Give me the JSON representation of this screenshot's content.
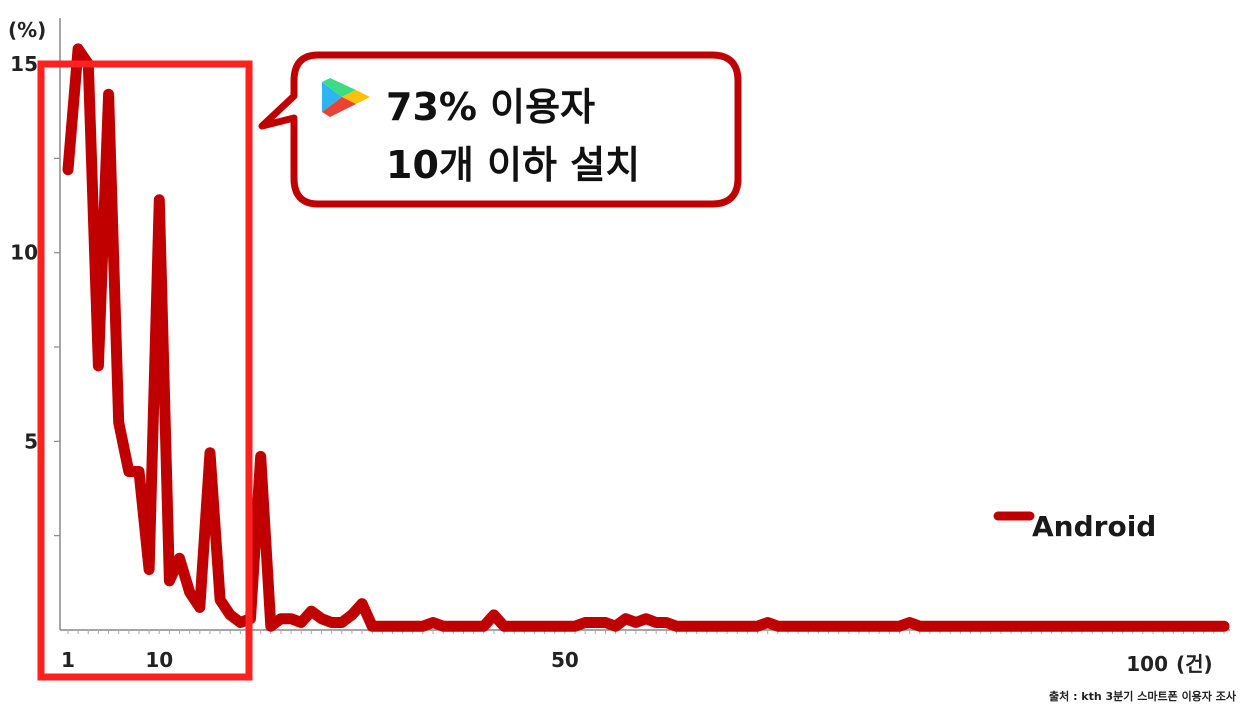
{
  "chart_data": {
    "type": "line",
    "y_unit_label": "(%)",
    "x_unit_label": "(건)",
    "ylim": [
      0,
      15
    ],
    "yticks": [
      5,
      10,
      15
    ],
    "xticks": [
      1,
      10,
      50,
      100
    ],
    "grid": false,
    "legend_position": "right",
    "series": [
      {
        "name": "Android",
        "color": "#c00000",
        "x": [
          1,
          2,
          3,
          4,
          5,
          6,
          7,
          8,
          9,
          10,
          11,
          12,
          13,
          14,
          15,
          16,
          17,
          18,
          19,
          20,
          21,
          22,
          23,
          24,
          25,
          26,
          27,
          28,
          29,
          30,
          31,
          32,
          33,
          34,
          35,
          36,
          37,
          38,
          39,
          40,
          41,
          42,
          43,
          44,
          45,
          46,
          47,
          48,
          49,
          50,
          51,
          52,
          53,
          54,
          55,
          56,
          57,
          58,
          59,
          60,
          61,
          62,
          63,
          64,
          65,
          66,
          67,
          68,
          69,
          70,
          71,
          72,
          73,
          74,
          75,
          76,
          77,
          78,
          79,
          80,
          81,
          82,
          83,
          84,
          85,
          86,
          87,
          88,
          89,
          90,
          91,
          92,
          93,
          94,
          95,
          96,
          97,
          98,
          99,
          100,
          101,
          102,
          103,
          104,
          105,
          106,
          107,
          108,
          109,
          110,
          111,
          112,
          113,
          114,
          115
        ],
        "values": [
          12.2,
          15.4,
          15.0,
          7.0,
          14.2,
          5.5,
          4.2,
          4.2,
          1.6,
          11.4,
          1.3,
          1.9,
          1.0,
          0.6,
          4.7,
          0.8,
          0.4,
          0.2,
          0.3,
          4.6,
          0.1,
          0.3,
          0.3,
          0.2,
          0.5,
          0.3,
          0.2,
          0.2,
          0.4,
          0.7,
          0.1,
          0.1,
          0.1,
          0.1,
          0.1,
          0.1,
          0.2,
          0.1,
          0.1,
          0.1,
          0.1,
          0.1,
          0.4,
          0.1,
          0.1,
          0.1,
          0.1,
          0.1,
          0.1,
          0.1,
          0.1,
          0.2,
          0.2,
          0.2,
          0.1,
          0.3,
          0.2,
          0.3,
          0.2,
          0.2,
          0.1,
          0.1,
          0.1,
          0.1,
          0.1,
          0.1,
          0.1,
          0.1,
          0.1,
          0.2,
          0.1,
          0.1,
          0.1,
          0.1,
          0.1,
          0.1,
          0.1,
          0.1,
          0.1,
          0.1,
          0.1,
          0.1,
          0.1,
          0.2,
          0.1,
          0.1,
          0.1,
          0.1,
          0.1,
          0.1,
          0.1,
          0.1,
          0.1,
          0.1,
          0.1,
          0.1,
          0.1,
          0.1,
          0.1,
          0.1,
          0.1,
          0.1,
          0.1,
          0.1,
          0.1,
          0.1,
          0.1,
          0.1,
          0.1,
          0.1,
          0.1,
          0.1,
          0.1,
          0.1,
          0.1
        ]
      }
    ]
  },
  "callout": {
    "line1": "73% 이용자",
    "line2": "10개 이하 설치",
    "highlight_color": "#ff2020",
    "bubble_border_color": "#c00000"
  },
  "source_note": "출처 : kth 3분기 스마트폰 이용자 조사"
}
